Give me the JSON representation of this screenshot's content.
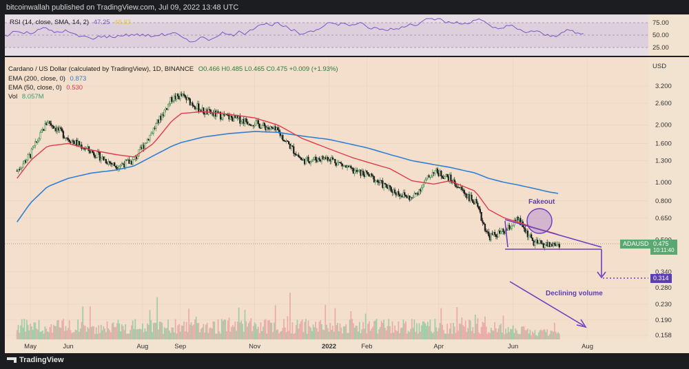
{
  "header": {
    "publisher_text": "bitcoinwallah published on TradingView.com, Jul 09, 2022 13:48 UTC"
  },
  "rsi": {
    "label": "RSI (14, close, SMA, 14, 2)",
    "value": "47.25",
    "value2": "48.83",
    "levels": [
      "75.00",
      "50.00",
      "25.00"
    ],
    "line_color": "#7b54c8"
  },
  "legend": {
    "symbol": "Cardano / US Dollar (calculated by TradingView), 1D, BINANCE",
    "ohlc": "O0.466  H0.485  L0.465  C0.475  +0.009 (+1.93%)",
    "ema200_label": "EMA (200, close, 0)",
    "ema200_value": "0.873",
    "ema200_color": "#2f7fd6",
    "ema50_label": "EMA (50, close, 0)",
    "ema50_value": "0.530",
    "ema50_color": "#e23a4a",
    "vol_label": "Vol",
    "vol_value": "8.057M",
    "vol_color": "#3d9a72"
  },
  "axis": {
    "currency": "USD",
    "price_ticks": [
      "3.200",
      "2.600",
      "2.000",
      "1.600",
      "1.300",
      "1.000",
      "0.800",
      "0.650",
      "0.500",
      "0.340",
      "0.280",
      "0.230",
      "0.190",
      "0.158"
    ],
    "date_ticks": [
      "May",
      "Jun",
      "Aug",
      "Sep",
      "Nov",
      "2022",
      "Feb",
      "Apr",
      "Jun",
      "Aug"
    ]
  },
  "price_tag": {
    "symbol": "ADAUSD",
    "price": "0.475",
    "countdown": "10:11:40",
    "color": "#5aa870"
  },
  "target_tag": {
    "price": "0.314",
    "color": "#5b3fb0"
  },
  "annotations": {
    "fakeout": "Fakeout",
    "declining_volume": "Declining volume",
    "color": "#6a3fc0"
  },
  "footer": {
    "brand": "TradingView"
  },
  "chart_data": {
    "type": "line",
    "scale": "log",
    "xlabel": "",
    "ylabel": "USD",
    "ylim": [
      0.158,
      3.6
    ],
    "x": [
      "2021-04-20",
      "2021-05-01",
      "2021-05-15",
      "2021-06-01",
      "2021-06-20",
      "2021-07-10",
      "2021-07-25",
      "2021-08-10",
      "2021-08-25",
      "2021-09-02",
      "2021-09-20",
      "2021-10-10",
      "2021-11-01",
      "2021-11-20",
      "2021-12-10",
      "2022-01-01",
      "2022-01-20",
      "2022-02-01",
      "2022-02-20",
      "2022-03-10",
      "2022-03-28",
      "2022-04-10",
      "2022-05-01",
      "2022-05-12",
      "2022-05-25",
      "2022-06-05",
      "2022-06-18",
      "2022-07-01",
      "2022-07-09"
    ],
    "series": [
      {
        "name": "ADAUSD",
        "values": [
          1.15,
          1.4,
          2.1,
          1.7,
          1.45,
          1.22,
          1.3,
          1.9,
          2.75,
          2.85,
          2.35,
          2.2,
          2.05,
          1.85,
          1.3,
          1.35,
          1.15,
          1.1,
          0.92,
          0.82,
          1.15,
          1.05,
          0.78,
          0.52,
          0.55,
          0.64,
          0.48,
          0.47,
          0.475
        ]
      },
      {
        "name": "EMA (200, close, 0)",
        "values": [
          0.62,
          0.78,
          0.95,
          1.05,
          1.12,
          1.16,
          1.22,
          1.38,
          1.55,
          1.62,
          1.73,
          1.8,
          1.85,
          1.83,
          1.75,
          1.68,
          1.58,
          1.52,
          1.4,
          1.3,
          1.24,
          1.2,
          1.12,
          1.05,
          1.0,
          0.97,
          0.93,
          0.89,
          0.873
        ]
      },
      {
        "name": "EMA (50, close, 0)",
        "values": [
          1.05,
          1.3,
          1.55,
          1.6,
          1.48,
          1.4,
          1.36,
          1.6,
          2.1,
          2.3,
          2.35,
          2.28,
          2.18,
          2.0,
          1.7,
          1.5,
          1.35,
          1.28,
          1.18,
          1.02,
          0.98,
          1.02,
          0.9,
          0.72,
          0.65,
          0.62,
          0.58,
          0.55,
          0.53
        ]
      }
    ],
    "volume": {
      "name": "Vol",
      "last": "8.057M"
    },
    "rsi_last": 47.25,
    "triangle": {
      "upper_start": 0.645,
      "upper_end": 0.475,
      "support": 0.47
    },
    "target": 0.314,
    "grid": true,
    "legend_position": "top-left"
  }
}
